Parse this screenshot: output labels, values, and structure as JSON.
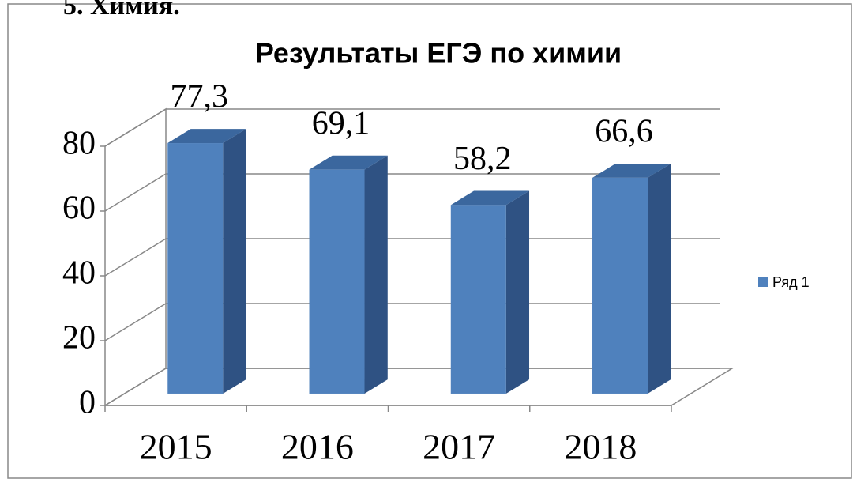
{
  "heading": "5. Химия.",
  "chart_data": {
    "type": "bar3d",
    "title": "Результаты ЕГЭ по химии",
    "categories": [
      "2015",
      "2016",
      "2017",
      "2018"
    ],
    "series": [
      {
        "name": "Ряд 1",
        "color": "#4f81bd",
        "values": [
          77.3,
          69.1,
          58.2,
          66.6
        ],
        "value_labels": [
          "77,3",
          "69,1",
          "58,2",
          "66,6"
        ]
      }
    ],
    "ylim": [
      0,
      80
    ],
    "yticks": [
      0,
      20,
      40,
      60,
      80
    ],
    "grid": true,
    "legend": "right"
  }
}
